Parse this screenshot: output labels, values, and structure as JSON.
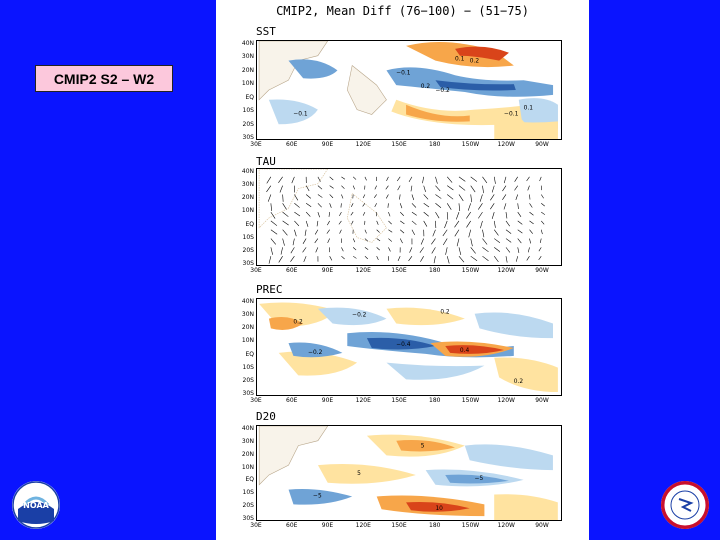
{
  "label": "CMIP2 S2 – W2",
  "figure": {
    "title": "CMIP2, Mean Diff (76−100) − (51−75)",
    "lat_ticks": [
      "40N",
      "30N",
      "20N",
      "10N",
      "EQ",
      "10S",
      "20S",
      "30S"
    ],
    "lon_ticks": [
      "30E",
      "60E",
      "90E",
      "120E",
      "150E",
      "180",
      "150W",
      "120W",
      "90W"
    ],
    "panels": [
      {
        "name": "sst",
        "title": "SST",
        "contour_labels": [
          "0.1",
          "−0.1",
          "0.2",
          "−0.2",
          "−0.1",
          "0.1",
          "0.2",
          "−0.1"
        ]
      },
      {
        "name": "tau",
        "title": "TAU",
        "contour_labels": []
      },
      {
        "name": "prec",
        "title": "PREC",
        "contour_labels": [
          "0.2",
          "−0.2",
          "0.4",
          "−0.4",
          "−0.2",
          "0.2",
          "0.2"
        ]
      },
      {
        "name": "d20",
        "title": "D20",
        "contour_labels": [
          "5",
          "−5",
          "−5",
          "5",
          "10"
        ]
      }
    ]
  },
  "logos": {
    "noaa": {
      "name": "noaa-logo",
      "text": "NOAA",
      "color": "#1a3fa6"
    },
    "nws": {
      "name": "nws-logo",
      "color": "#c8102e"
    }
  },
  "colors": {
    "background": "#0a14ff",
    "warm_light": "#ffe3a0",
    "warm_mid": "#f7a64a",
    "warm_dark": "#d9441a",
    "cool_light": "#bcd9f0",
    "cool_mid": "#6fa3d6",
    "cool_dark": "#2b5ea8"
  }
}
